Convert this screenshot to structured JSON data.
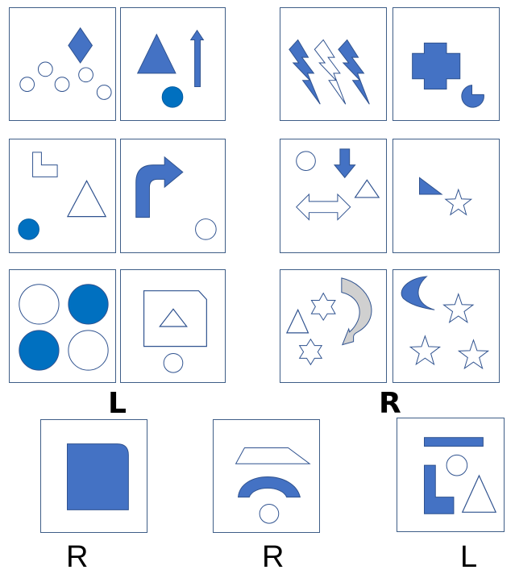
{
  "colors": {
    "fill_blue": "#4472c4",
    "fill_dark_blue": "#0070c0",
    "stroke_blue": "#2f528f",
    "border": "#3f5e87",
    "grey": "#d0d0d0"
  },
  "left_group": {
    "label": "L",
    "tiles": [
      {
        "shapes": [
          "diamond",
          "five-circles"
        ]
      },
      {
        "shapes": [
          "triangle",
          "up-arrow",
          "dot"
        ]
      },
      {
        "shapes": [
          "l-shape",
          "triangle",
          "dot"
        ]
      },
      {
        "shapes": [
          "bent-arrow",
          "circle"
        ]
      },
      {
        "shapes": [
          "four-circles"
        ]
      },
      {
        "shapes": [
          "frame",
          "triangle",
          "circle"
        ]
      }
    ]
  },
  "right_group": {
    "label": "R",
    "tiles": [
      {
        "shapes": [
          "lightning-bolts"
        ]
      },
      {
        "shapes": [
          "cross",
          "pie"
        ]
      },
      {
        "shapes": [
          "circle",
          "down-arrow",
          "triangle",
          "double-arrow"
        ]
      },
      {
        "shapes": [
          "right-triangle",
          "star"
        ]
      },
      {
        "shapes": [
          "stars",
          "triangle",
          "curved-arrow"
        ]
      },
      {
        "shapes": [
          "moon",
          "stars"
        ]
      }
    ]
  },
  "answers": [
    {
      "label": "R",
      "shapes": [
        "rounded-square"
      ]
    },
    {
      "label": "R",
      "shapes": [
        "trapezoid",
        "arch",
        "circle"
      ]
    },
    {
      "label": "L",
      "shapes": [
        "bar",
        "circle",
        "l-shape",
        "triangle"
      ]
    }
  ]
}
